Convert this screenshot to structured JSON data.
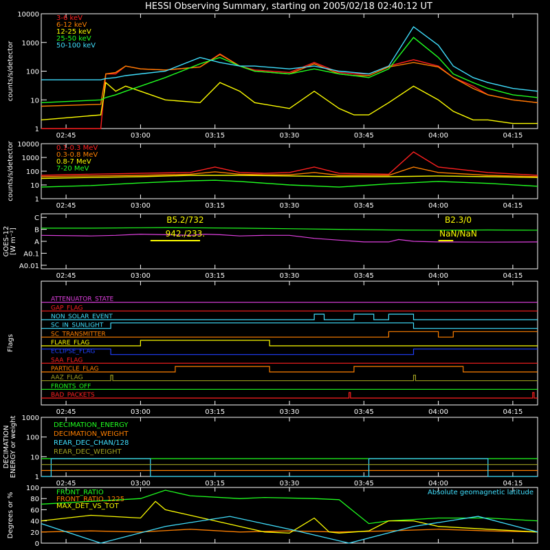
{
  "title": "HESSI Observing Summary, starting on 2005/02/18 02:40:12 UT",
  "colors": {
    "red": "#ff2020",
    "orange": "#ff8000",
    "yellow": "#ffff00",
    "green": "#20ff20",
    "cyan": "#40e0ff",
    "magenta": "#e040e0",
    "blue": "#2040ff",
    "olive": "#a0a020",
    "white": "#ffffff"
  },
  "chart_data": [
    {
      "type": "line",
      "panel": "hxr_low",
      "ylabel": "counts/s/detector",
      "yscale": "log",
      "ylim": [
        1,
        10000
      ],
      "yticks": [
        "1",
        "10",
        "100",
        "1000",
        "10000"
      ],
      "xlim_minutes": [
        0,
        100
      ],
      "xticks": [
        "02:45",
        "03:00",
        "03:15",
        "03:30",
        "03:45",
        "04:00",
        "04:15"
      ],
      "series": [
        {
          "name": "3-6 keV",
          "color": "red",
          "x": [
            0,
            12,
            13,
            15,
            17,
            20,
            25,
            32,
            36,
            40,
            43,
            50,
            55,
            60,
            63,
            66,
            70,
            75,
            80,
            83,
            87,
            90,
            95,
            100
          ],
          "y": [
            0,
            0,
            80,
            80,
            150,
            120,
            110,
            140,
            400,
            150,
            110,
            90,
            200,
            90,
            80,
            80,
            150,
            250,
            150,
            60,
            30,
            15,
            10,
            8
          ]
        },
        {
          "name": "6-12 keV",
          "color": "orange",
          "x": [
            0,
            12,
            13,
            15,
            17,
            20,
            25,
            32,
            36,
            40,
            43,
            50,
            55,
            60,
            63,
            66,
            70,
            75,
            80,
            83,
            87,
            90,
            95,
            100
          ],
          "y": [
            6,
            7,
            80,
            90,
            150,
            120,
            110,
            140,
            380,
            150,
            100,
            80,
            180,
            80,
            70,
            70,
            140,
            200,
            140,
            60,
            25,
            15,
            10,
            8
          ]
        },
        {
          "name": "12-25 keV",
          "color": "yellow",
          "x": [
            0,
            12,
            13,
            15,
            17,
            20,
            25,
            32,
            36,
            40,
            43,
            50,
            55,
            60,
            63,
            66,
            70,
            75,
            80,
            83,
            87,
            90,
            95,
            100
          ],
          "y": [
            2,
            3,
            40,
            20,
            30,
            20,
            10,
            8,
            40,
            20,
            8,
            5,
            20,
            5,
            3,
            3,
            8,
            30,
            10,
            4,
            2,
            2,
            1.5,
            1.5
          ]
        },
        {
          "name": "25-50 keV",
          "color": "green",
          "x": [
            0,
            12,
            13,
            15,
            17,
            20,
            25,
            32,
            36,
            40,
            43,
            50,
            55,
            60,
            63,
            66,
            70,
            75,
            80,
            83,
            87,
            90,
            95,
            100
          ],
          "y": [
            8,
            10,
            12,
            15,
            20,
            30,
            60,
            180,
            300,
            150,
            100,
            80,
            120,
            80,
            70,
            60,
            120,
            1500,
            300,
            80,
            40,
            25,
            15,
            12
          ]
        },
        {
          "name": "50-100 keV",
          "color": "cyan",
          "x": [
            0,
            12,
            13,
            15,
            17,
            20,
            25,
            32,
            36,
            40,
            43,
            50,
            55,
            60,
            63,
            66,
            70,
            75,
            80,
            83,
            87,
            90,
            95,
            100
          ],
          "y": [
            50,
            50,
            55,
            60,
            70,
            80,
            100,
            300,
            200,
            150,
            150,
            120,
            150,
            100,
            90,
            80,
            150,
            3500,
            800,
            150,
            60,
            40,
            25,
            20
          ]
        }
      ]
    },
    {
      "type": "line",
      "panel": "hxr_high",
      "ylabel": "counts/s/detector",
      "yscale": "log",
      "ylim": [
        1,
        10000
      ],
      "yticks": [
        "1",
        "10",
        "100",
        "1000",
        "10000"
      ],
      "xlim_minutes": [
        0,
        100
      ],
      "xticks": [
        "02:45",
        "03:00",
        "03:15",
        "03:30",
        "03:45",
        "04:00",
        "04:15"
      ],
      "series": [
        {
          "name": "0.1-0.3 MeV",
          "color": "red",
          "x": [
            0,
            10,
            20,
            30,
            35,
            40,
            45,
            50,
            55,
            60,
            70,
            75,
            80,
            90,
            100
          ],
          "y": [
            50,
            60,
            70,
            80,
            200,
            80,
            70,
            80,
            200,
            70,
            60,
            2500,
            200,
            80,
            50
          ]
        },
        {
          "name": "0.3-0.8 MeV",
          "color": "orange",
          "x": [
            0,
            10,
            20,
            30,
            35,
            40,
            45,
            50,
            55,
            60,
            70,
            75,
            80,
            90,
            100
          ],
          "y": [
            40,
            45,
            50,
            60,
            90,
            60,
            55,
            55,
            80,
            50,
            50,
            200,
            80,
            50,
            40
          ]
        },
        {
          "name": "0.8-7 MeV",
          "color": "yellow",
          "x": [
            0,
            10,
            20,
            30,
            40,
            50,
            60,
            70,
            80,
            90,
            100
          ],
          "y": [
            30,
            35,
            40,
            50,
            50,
            45,
            40,
            40,
            45,
            40,
            35
          ]
        },
        {
          "name": "7-20 MeV",
          "color": "green",
          "x": [
            0,
            10,
            20,
            30,
            35,
            40,
            50,
            60,
            70,
            80,
            90,
            100
          ],
          "y": [
            7,
            9,
            14,
            20,
            22,
            18,
            10,
            7,
            12,
            18,
            13,
            8
          ]
        }
      ]
    },
    {
      "type": "line",
      "panel": "goes",
      "ylabel": "GOES-12",
      "ylabel2": "[W m⁻²]",
      "yticks": [
        "A0.01",
        "A0.1",
        "A",
        "B",
        "C"
      ],
      "xlim_minutes": [
        0,
        100
      ],
      "xticks": [
        "02:45",
        "03:00",
        "03:15",
        "03:30",
        "03:45",
        "04:00",
        "04:15"
      ],
      "annotations": [
        "B5.2/732",
        "942./233.",
        "B2.3/0",
        "NaN/NaN"
      ],
      "series": [
        {
          "name": "long",
          "color": "green",
          "x": [
            0,
            10,
            20,
            25,
            30,
            40,
            50,
            60,
            70,
            80,
            90,
            100
          ],
          "y": [
            0.55,
            0.55,
            0.58,
            0.6,
            0.58,
            0.55,
            0.5,
            0.45,
            0.4,
            0.38,
            0.4,
            0.38
          ]
        },
        {
          "name": "short",
          "color": "magenta",
          "x": [
            0,
            10,
            15,
            20,
            25,
            30,
            33,
            36,
            40,
            45,
            50,
            55,
            60,
            65,
            70,
            72,
            75,
            80,
            90,
            100
          ],
          "y": [
            -0.05,
            -0.1,
            -0.05,
            0.05,
            0,
            -0.05,
            0.05,
            0,
            -0.1,
            -0.05,
            -0.05,
            -0.3,
            -0.45,
            -0.6,
            -0.6,
            -0.4,
            -0.55,
            -0.6,
            -0.62,
            -0.6
          ]
        }
      ]
    },
    {
      "type": "line",
      "panel": "flags",
      "ylabel": "Flags",
      "xlim_minutes": [
        0,
        100
      ],
      "xticks": [
        "02:45",
        "03:00",
        "03:15",
        "03:30",
        "03:45",
        "04:00",
        "04:15"
      ],
      "series": [
        {
          "name": "ATTENUATOR_STATE",
          "color": "magenta",
          "x": [
            0,
            100
          ],
          "y": [
            0,
            0
          ]
        },
        {
          "name": "GAP_FLAG",
          "color": "red",
          "x": [
            0,
            100
          ],
          "y": [
            0,
            0
          ]
        },
        {
          "name": "NON_SOLAR_EVENT",
          "color": "cyan",
          "x": [
            0,
            55,
            55,
            57,
            57,
            63,
            63,
            67,
            67,
            70,
            70,
            75,
            75,
            100
          ],
          "y": [
            0,
            0,
            1,
            1,
            0,
            0,
            1,
            1,
            0,
            0,
            1,
            1,
            0,
            0
          ]
        },
        {
          "name": "SC_IN_SUNLIGHT",
          "color": "cyan",
          "x": [
            0,
            14,
            14,
            75,
            75,
            100
          ],
          "y": [
            0,
            0,
            1,
            1,
            0,
            0
          ]
        },
        {
          "name": "SC_TRANSMITTER",
          "color": "orange",
          "x": [
            0,
            70,
            70,
            80,
            80,
            83,
            83,
            100
          ],
          "y": [
            0,
            0,
            1,
            1,
            0,
            0,
            1,
            1
          ]
        },
        {
          "name": "FLARE_FLAG",
          "color": "yellow",
          "x": [
            0,
            20,
            20,
            46,
            46,
            100
          ],
          "y": [
            0,
            0,
            1,
            1,
            0,
            0
          ]
        },
        {
          "name": "ECLIPSE_FLAG",
          "color": "blue",
          "x": [
            0,
            14,
            14,
            75,
            75,
            100
          ],
          "y": [
            1,
            1,
            0,
            0,
            1,
            1
          ]
        },
        {
          "name": "SAA_FLAG",
          "color": "red",
          "x": [
            0,
            100
          ],
          "y": [
            0,
            0
          ]
        },
        {
          "name": "PARTICLE_FLAG",
          "color": "orange",
          "x": [
            0,
            27,
            27,
            46,
            46,
            63,
            63,
            85,
            85,
            100
          ],
          "y": [
            0,
            0,
            1,
            1,
            0,
            0,
            1,
            1,
            0,
            0
          ]
        },
        {
          "name": "AAZ_FLAG",
          "color": "olive",
          "x": [
            0,
            14,
            14,
            14.4,
            14.4,
            75,
            75,
            75.4,
            75.4,
            100
          ],
          "y": [
            0,
            0,
            1,
            1,
            0,
            0,
            1,
            1,
            0,
            0
          ]
        },
        {
          "name": "FRONTS_OFF",
          "color": "green",
          "x": [
            0,
            100
          ],
          "y": [
            0,
            0
          ]
        },
        {
          "name": "BAD_PACKETS",
          "color": "red",
          "x": [
            0,
            62,
            62,
            62.3,
            62.3,
            99,
            99,
            99.3,
            99.3,
            100
          ],
          "y": [
            0,
            0,
            1,
            1,
            0,
            0,
            1,
            1,
            0,
            0
          ]
        }
      ]
    },
    {
      "type": "line",
      "panel": "decimation",
      "ylabel": "DECIMATION",
      "ylabel2": "ENERGY or weight",
      "yscale": "log",
      "yticks": [
        "1",
        "10",
        "100",
        "1000"
      ],
      "xlim_minutes": [
        0,
        100
      ],
      "xticks": [
        "02:45",
        "03:00",
        "03:15",
        "03:30",
        "03:45",
        "04:00",
        "04:15"
      ],
      "series": [
        {
          "name": "DECIMATION_ENERGY",
          "color": "green",
          "x": [
            0,
            100
          ],
          "y": [
            8,
            8
          ]
        },
        {
          "name": "DECIMATION_WEIGHT",
          "color": "orange",
          "x": [
            0,
            100
          ],
          "y": [
            2,
            2
          ]
        },
        {
          "name": "REAR_DEC_CHAN/128",
          "color": "cyan",
          "x": [
            0,
            2,
            2,
            22,
            22,
            66,
            66,
            90,
            90,
            100
          ],
          "y": [
            1,
            1,
            8,
            8,
            1,
            1,
            8,
            8,
            1,
            1
          ]
        },
        {
          "name": "REAR_DEC_WEIGHT",
          "color": "olive",
          "x": [
            0,
            100
          ],
          "y": [
            4,
            4
          ]
        }
      ]
    },
    {
      "type": "line",
      "panel": "ratios",
      "ylabel": "Degrees or %",
      "ylim": [
        0,
        100
      ],
      "yticks": [
        "0",
        "20",
        "40",
        "60",
        "80",
        "100"
      ],
      "xlim_minutes": [
        0,
        100
      ],
      "xticks": [
        "02:45",
        "03:00",
        "03:15",
        "03:30",
        "03:45",
        "04:00",
        "04:15"
      ],
      "annotations": [
        "Absolute geomagnetic latitude"
      ],
      "series": [
        {
          "name": "FRONT_RATIO",
          "color": "green",
          "x": [
            0,
            10,
            20,
            25,
            30,
            40,
            45,
            55,
            60,
            66,
            70,
            80,
            90,
            100
          ],
          "y": [
            70,
            75,
            80,
            95,
            85,
            80,
            82,
            80,
            78,
            35,
            40,
            45,
            45,
            40
          ]
        },
        {
          "name": "FRONT_RATIO_1225",
          "color": "orange",
          "x": [
            0,
            10,
            20,
            30,
            40,
            50,
            60,
            70,
            80,
            90,
            100
          ],
          "y": [
            20,
            22,
            20,
            25,
            20,
            22,
            20,
            22,
            25,
            22,
            20
          ]
        },
        {
          "name": "MAX_DET_VS_TOT",
          "color": "yellow",
          "x": [
            0,
            10,
            20,
            23,
            25,
            30,
            35,
            40,
            45,
            50,
            55,
            58,
            60,
            66,
            70,
            75,
            80,
            90,
            100
          ],
          "y": [
            40,
            50,
            45,
            75,
            60,
            50,
            40,
            30,
            20,
            18,
            45,
            20,
            18,
            22,
            40,
            40,
            30,
            25,
            20
          ]
        },
        {
          "name": "Absolute geomagnetic latitude",
          "color": "cyan",
          "x": [
            0,
            12,
            25,
            38,
            50,
            62,
            75,
            88,
            100
          ],
          "y": [
            35,
            0,
            30,
            48,
            25,
            0,
            30,
            48,
            20
          ]
        }
      ]
    }
  ]
}
